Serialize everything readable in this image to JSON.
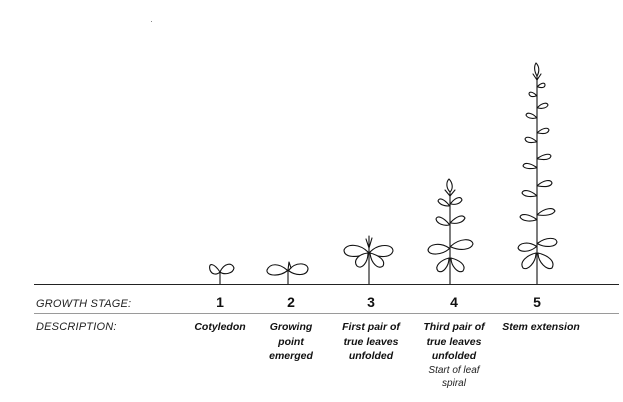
{
  "labels": {
    "growth_stage": "GROWTH STAGE:",
    "description": "DESCRIPTION:"
  },
  "stages": [
    {
      "number": "1",
      "description": "Cotyledon",
      "note": ""
    },
    {
      "number": "2",
      "description": "Growing\npoint\nemerged",
      "note": ""
    },
    {
      "number": "3",
      "description": "First pair of\ntrue leaves\nunfolded",
      "note": ""
    },
    {
      "number": "4",
      "description": "Third pair of\ntrue leaves\nunfolded",
      "note": "Start of leaf\nspiral"
    },
    {
      "number": "5",
      "description": "Stem extension",
      "note": ""
    }
  ],
  "colors": {
    "ink": "#111111",
    "ground": "#222222",
    "divider": "#9a9a9a"
  },
  "icons": [
    "cotyledon-seedling-icon",
    "growing-point-seedling-icon",
    "first-leaf-pair-plant-icon",
    "third-leaf-pair-plant-icon",
    "stem-extension-plant-icon"
  ]
}
